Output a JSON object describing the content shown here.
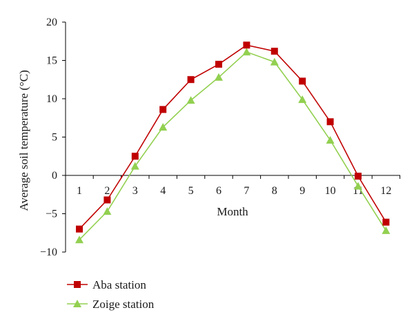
{
  "chart_data": {
    "type": "line",
    "title": "",
    "xlabel": "Month",
    "ylabel": "Average soil temperature (°C)",
    "categories": [
      "1",
      "2",
      "3",
      "4",
      "5",
      "6",
      "7",
      "8",
      "9",
      "10",
      "11",
      "12"
    ],
    "yticks": [
      "20",
      "15",
      "10",
      "5",
      "0",
      "−5",
      "−10"
    ],
    "ylim": [
      -10,
      20
    ],
    "grid": false,
    "legend_position": "bottom-left",
    "series": [
      {
        "name": "Aba station",
        "marker": "square",
        "color": "#c00000",
        "values": [
          -7.0,
          -3.2,
          2.5,
          8.6,
          12.5,
          14.5,
          17.0,
          16.2,
          12.3,
          7.0,
          -0.1,
          -6.1
        ]
      },
      {
        "name": "Zoige station",
        "marker": "triangle",
        "color": "#92d050",
        "values": [
          -8.4,
          -4.7,
          1.2,
          6.3,
          9.8,
          12.8,
          16.1,
          14.8,
          9.9,
          4.6,
          -1.4,
          -7.2
        ]
      }
    ]
  }
}
